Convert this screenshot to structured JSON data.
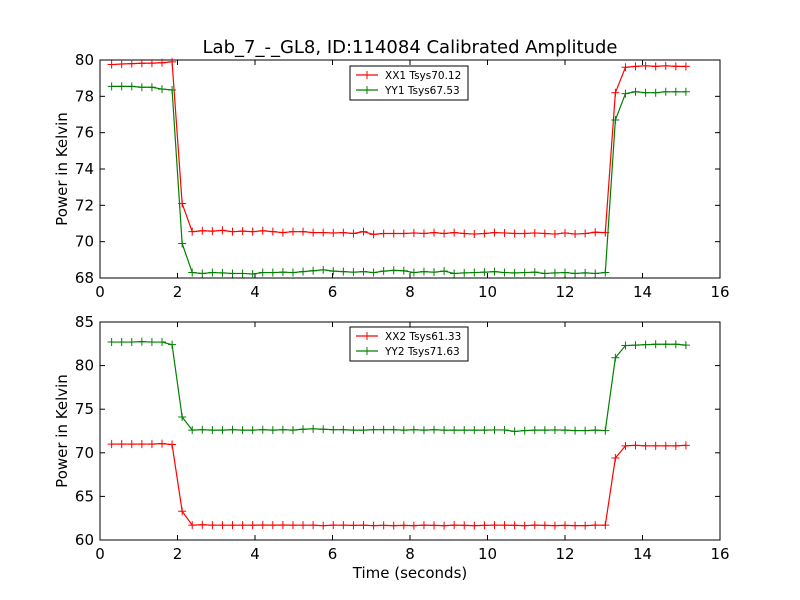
{
  "chart_data": [
    {
      "type": "line",
      "title": "Lab_7_-_GL8, ID:114084 Calibrated Amplitude",
      "xlabel": "",
      "ylabel": "Power in Kelvin",
      "xlim": [
        0,
        16
      ],
      "ylim": [
        68,
        80
      ],
      "xticks": [
        "0",
        "2",
        "4",
        "6",
        "8",
        "10",
        "12",
        "14",
        "16"
      ],
      "yticks": [
        "68",
        "70",
        "72",
        "74",
        "76",
        "78",
        "80"
      ],
      "grid": false,
      "legend_position": "upper-center",
      "x": [
        0.3,
        0.56,
        0.82,
        1.08,
        1.34,
        1.6,
        1.86,
        2.12,
        2.38,
        2.64,
        2.9,
        3.16,
        3.42,
        3.68,
        3.94,
        4.2,
        4.46,
        4.72,
        4.98,
        5.24,
        5.5,
        5.76,
        6.02,
        6.28,
        6.54,
        6.8,
        7.06,
        7.32,
        7.58,
        7.84,
        8.1,
        8.36,
        8.62,
        8.88,
        9.14,
        9.4,
        9.66,
        9.92,
        10.18,
        10.44,
        10.7,
        10.96,
        11.22,
        11.48,
        11.74,
        12.0,
        12.26,
        12.52,
        12.78,
        13.04,
        13.3,
        13.56,
        13.82,
        14.08,
        14.34,
        14.6,
        14.86,
        15.12
      ],
      "series": [
        {
          "name": "XX1 Tsys70.12",
          "color": "#ff0000",
          "values": [
            79.75,
            79.78,
            79.8,
            79.82,
            79.83,
            79.85,
            79.9,
            72.1,
            70.55,
            70.6,
            70.58,
            70.62,
            70.55,
            70.58,
            70.55,
            70.6,
            70.55,
            70.5,
            70.55,
            70.55,
            70.5,
            70.5,
            70.48,
            70.5,
            70.45,
            70.55,
            70.4,
            70.45,
            70.45,
            70.45,
            70.48,
            70.45,
            70.5,
            70.45,
            70.5,
            70.45,
            70.42,
            70.45,
            70.5,
            70.48,
            70.45,
            70.45,
            70.48,
            70.45,
            70.42,
            70.48,
            70.42,
            70.45,
            70.52,
            70.5,
            78.2,
            79.6,
            79.65,
            79.68,
            79.65,
            79.68,
            79.65,
            79.65
          ]
        },
        {
          "name": "YY1 Tsys67.53",
          "color": "#008000",
          "values": [
            78.55,
            78.55,
            78.55,
            78.5,
            78.5,
            78.4,
            78.35,
            69.9,
            68.3,
            68.25,
            68.3,
            68.28,
            68.25,
            68.25,
            68.22,
            68.3,
            68.3,
            68.32,
            68.3,
            68.35,
            68.4,
            68.45,
            68.38,
            68.35,
            68.32,
            68.35,
            68.3,
            68.38,
            68.42,
            68.4,
            68.3,
            68.35,
            68.32,
            68.38,
            68.25,
            68.28,
            68.3,
            68.32,
            68.35,
            68.3,
            68.28,
            68.3,
            68.32,
            68.25,
            68.28,
            68.3,
            68.25,
            68.28,
            68.25,
            68.3,
            76.7,
            78.15,
            78.25,
            78.2,
            78.2,
            78.25,
            78.25,
            78.25
          ]
        }
      ]
    },
    {
      "type": "line",
      "title": "",
      "xlabel": "Time (seconds)",
      "ylabel": "Power in Kelvin",
      "xlim": [
        0,
        16
      ],
      "ylim": [
        60,
        85
      ],
      "xticks": [
        "0",
        "2",
        "4",
        "6",
        "8",
        "10",
        "12",
        "14",
        "16"
      ],
      "yticks": [
        "60",
        "65",
        "70",
        "75",
        "80",
        "85"
      ],
      "grid": false,
      "legend_position": "upper-center",
      "x": [
        0.3,
        0.56,
        0.82,
        1.08,
        1.34,
        1.6,
        1.86,
        2.12,
        2.38,
        2.64,
        2.9,
        3.16,
        3.42,
        3.68,
        3.94,
        4.2,
        4.46,
        4.72,
        4.98,
        5.24,
        5.5,
        5.76,
        6.02,
        6.28,
        6.54,
        6.8,
        7.06,
        7.32,
        7.58,
        7.84,
        8.1,
        8.36,
        8.62,
        8.88,
        9.14,
        9.4,
        9.66,
        9.92,
        10.18,
        10.44,
        10.7,
        10.96,
        11.22,
        11.48,
        11.74,
        12.0,
        12.26,
        12.52,
        12.78,
        13.04,
        13.3,
        13.56,
        13.82,
        14.08,
        14.34,
        14.6,
        14.86,
        15.12
      ],
      "series": [
        {
          "name": "XX2 Tsys61.33",
          "color": "#ff0000",
          "values": [
            71.0,
            71.0,
            71.0,
            71.0,
            71.0,
            71.05,
            70.95,
            63.3,
            61.7,
            61.75,
            61.7,
            61.7,
            61.7,
            61.7,
            61.7,
            61.72,
            61.7,
            61.72,
            61.7,
            61.7,
            61.7,
            61.65,
            61.7,
            61.7,
            61.68,
            61.7,
            61.65,
            61.68,
            61.65,
            61.68,
            61.65,
            61.7,
            61.68,
            61.65,
            61.7,
            61.68,
            61.65,
            61.68,
            61.7,
            61.7,
            61.68,
            61.65,
            61.7,
            61.68,
            61.65,
            61.68,
            61.65,
            61.65,
            61.7,
            61.7,
            69.4,
            70.8,
            70.85,
            70.8,
            70.8,
            70.8,
            70.8,
            70.85
          ]
        },
        {
          "name": "YY2 Tsys71.63",
          "color": "#008000",
          "values": [
            82.7,
            82.7,
            82.7,
            82.75,
            82.7,
            82.7,
            82.4,
            74.1,
            72.6,
            72.65,
            72.6,
            72.6,
            72.65,
            72.6,
            72.6,
            72.65,
            72.6,
            72.65,
            72.6,
            72.7,
            72.75,
            72.7,
            72.65,
            72.65,
            72.6,
            72.6,
            72.65,
            72.65,
            72.65,
            72.6,
            72.65,
            72.6,
            72.65,
            72.6,
            72.6,
            72.6,
            72.6,
            72.6,
            72.62,
            72.62,
            72.45,
            72.55,
            72.6,
            72.6,
            72.62,
            72.6,
            72.55,
            72.55,
            72.6,
            72.55,
            80.9,
            82.3,
            82.35,
            82.4,
            82.45,
            82.45,
            82.45,
            82.35
          ]
        }
      ]
    }
  ]
}
